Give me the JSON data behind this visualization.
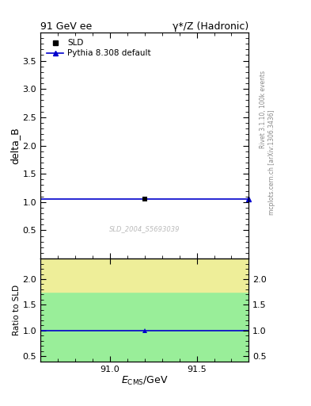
{
  "title_left": "91 GeV ee",
  "title_right": "γ*/Z (Hadronic)",
  "ylabel_main": "delta_B",
  "ylabel_ratio": "Ratio to SLD",
  "xlabel": "E_{CMS}/GeV",
  "right_label_top": "Rivet 3.1.10, 100k events",
  "right_label_bottom": "mcplots.cern.ch [arXiv:1306.3436]",
  "watermark": "SLD_2004_S5693039",
  "xlim": [
    90.6,
    91.8
  ],
  "ylim_main": [
    0.0,
    4.0
  ],
  "ylim_ratio": [
    0.4,
    2.4
  ],
  "x_data_point": 91.2,
  "y_data_sld": 1.05,
  "y_ratio_pythia": 1.0,
  "line_color": "#0000cc",
  "line_y": 1.05,
  "ratio_line_y": 1.0,
  "green_band_hi": 1.75,
  "yellow_band_hi": 2.4,
  "xticks": [
    91.0,
    91.5
  ],
  "yticks_main": [
    0.5,
    1.0,
    1.5,
    2.0,
    2.5,
    3.0,
    3.5
  ],
  "yticks_ratio": [
    0.5,
    1.0,
    1.5,
    2.0
  ],
  "legend_sld_label": "SLD",
  "legend_pythia_label": "Pythia 8.308 default",
  "bg_color": "#ffffff",
  "plot_bg": "#ffffff",
  "green_color": "#99ee99",
  "yellow_color": "#eeee99"
}
